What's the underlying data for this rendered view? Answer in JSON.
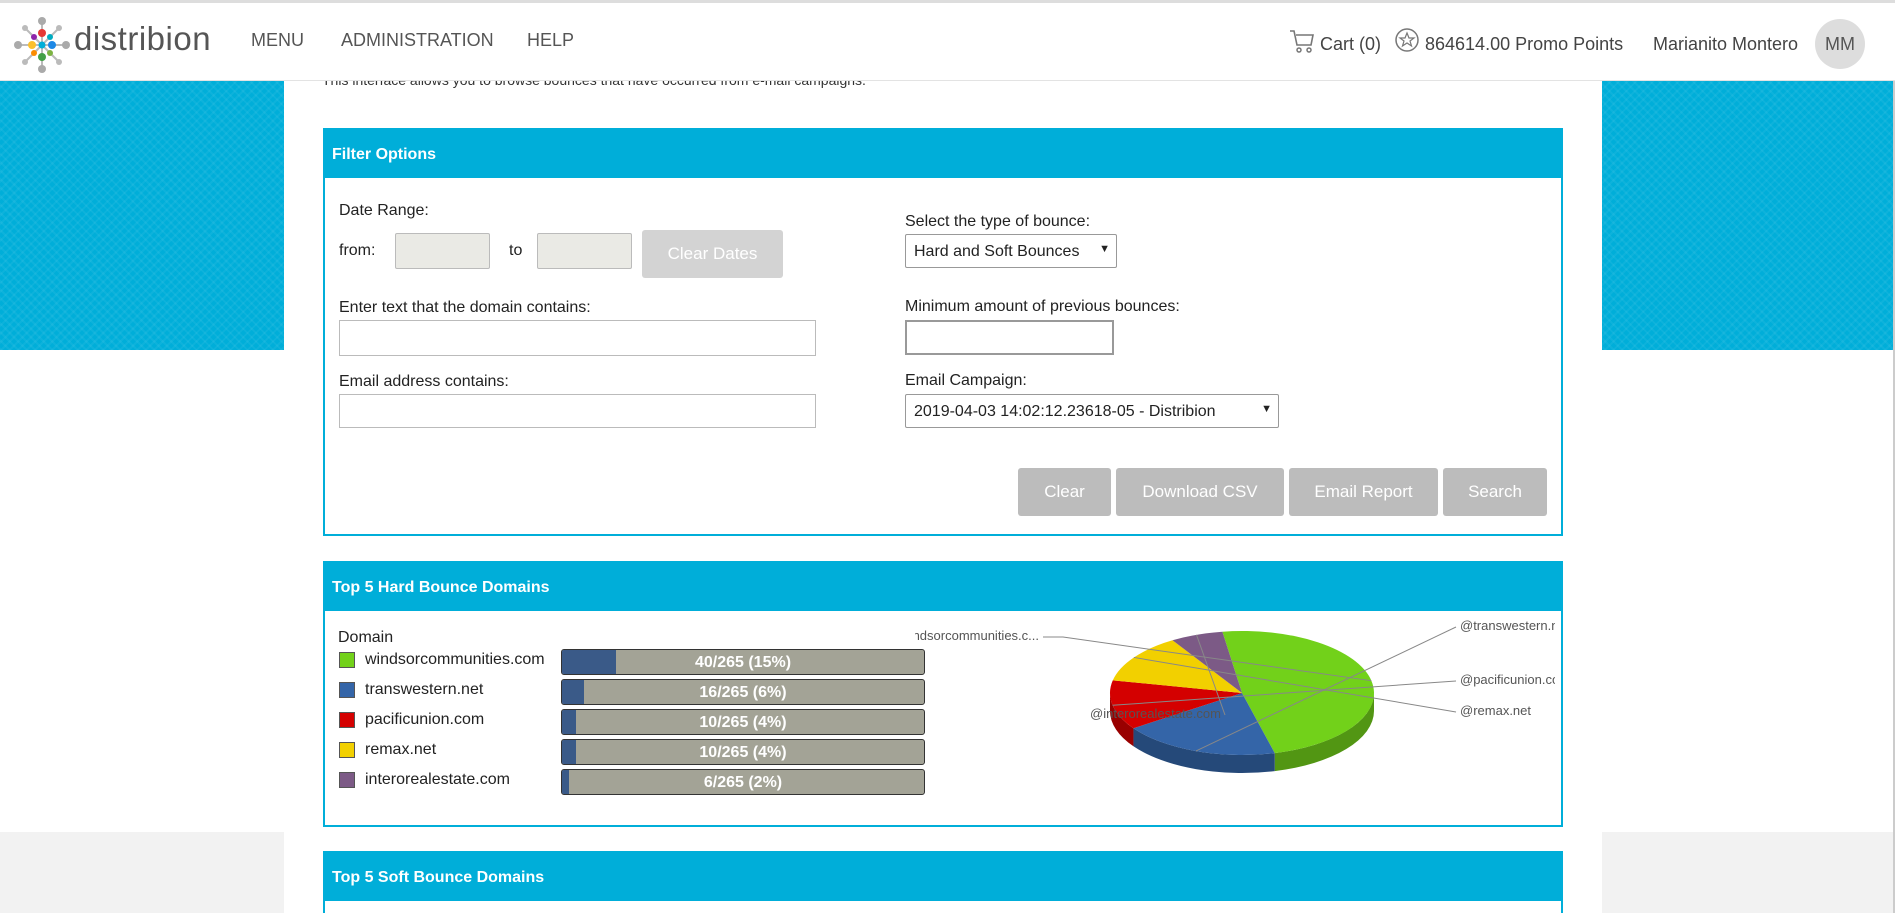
{
  "header": {
    "logo_text": "distribion",
    "nav": [
      "MENU",
      "ADMINISTRATION",
      "HELP"
    ],
    "cart_label": "Cart (0)",
    "points_label": "864614.00 Promo Points",
    "user_name": "Marianito Montero",
    "avatar_initials": "MM"
  },
  "intro_text": "This interface allows you to browse bounces that have occurred from e-mail campaigns.",
  "filter": {
    "title": "Filter Options",
    "date_range_label": "Date Range:",
    "from_label": "from:",
    "to_label": "to",
    "from_value": "",
    "to_value": "",
    "clear_dates_label": "Clear Dates",
    "domain_label": "Enter text that the domain contains:",
    "domain_value": "",
    "email_label": "Email address contains:",
    "email_value": "",
    "bounce_type_label": "Select the type of bounce:",
    "bounce_type_value": "Hard and Soft Bounces",
    "min_bounces_label": "Minimum amount of previous bounces:",
    "min_bounces_value": "",
    "campaign_label": "Email Campaign:",
    "campaign_value": "2019-04-03 14:02:12.23618-05 - Distribion",
    "buttons": {
      "clear": "Clear",
      "download_csv": "Download CSV",
      "email_report": "Email Report",
      "search": "Search"
    }
  },
  "hard_bounces": {
    "title": "Top 5 Hard Bounce Domains",
    "column_label": "Domain",
    "rows": [
      {
        "domain": "windsorcommunities.com",
        "stat": "40/265 (15%)",
        "fraction": 0.15,
        "color": "#72d11a",
        "pie_label": "@windsorcommunities.c..."
      },
      {
        "domain": "transwestern.net",
        "stat": "16/265 (6%)",
        "fraction": 0.06,
        "color": "#3465a8",
        "pie_label": "@transwestern.net"
      },
      {
        "domain": "pacificunion.com",
        "stat": "10/265 (4%)",
        "fraction": 0.04,
        "color": "#d40000",
        "pie_label": "@pacificunion.com"
      },
      {
        "domain": "remax.net",
        "stat": "10/265 (4%)",
        "fraction": 0.04,
        "color": "#f2d000",
        "pie_label": "@remax.net"
      },
      {
        "domain": "interorealestate.com",
        "stat": "6/265 (2%)",
        "fraction": 0.02,
        "color": "#7c5a86",
        "pie_label": "@interorealestate.com"
      }
    ]
  },
  "soft_bounces": {
    "title": "Top 5 Soft Bounce Domains"
  }
}
